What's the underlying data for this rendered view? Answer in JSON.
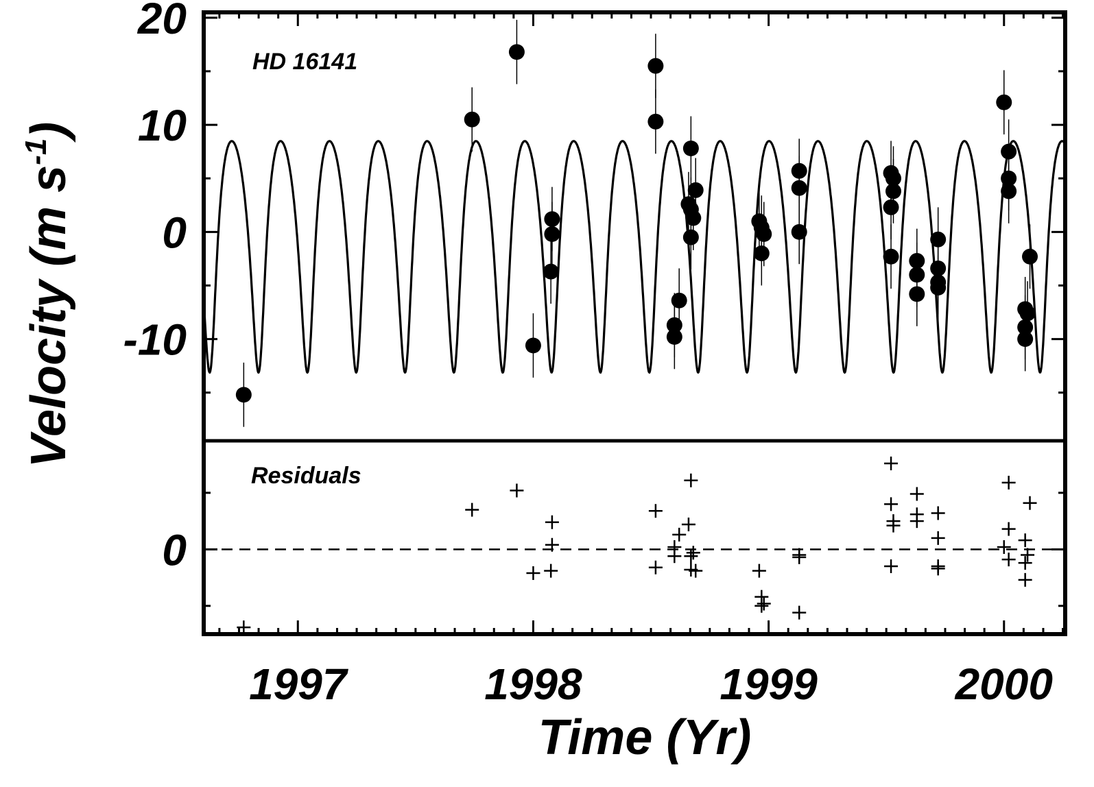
{
  "chart_data": {
    "type": "scatter",
    "xlabel": "Time  (Yr)",
    "ylabel": "Velocity  (m s",
    "ylabel_sup": "-1",
    "ylabel_close": ")",
    "xlim": [
      1996.6,
      2000.26
    ],
    "panels": {
      "velocity": {
        "annotation": "HD 16141",
        "ylim": [
          -19.5,
          20.5
        ],
        "yticks": [
          {
            "value": 20,
            "label": "20"
          },
          {
            "value": 10,
            "label": "10"
          },
          {
            "value": 0,
            "label": "0"
          },
          {
            "value": -10,
            "label": "-10"
          }
        ],
        "model_curve": {
          "period_days": 75.8,
          "K": 10.8,
          "eccentricity": 0.28,
          "gamma": 0.6,
          "omega_deg": 195,
          "t_peri": 1996.63
        },
        "observations": [
          {
            "x": 1996.77,
            "y": -15.2
          },
          {
            "x": 1997.74,
            "y": 10.5
          },
          {
            "x": 1997.93,
            "y": 16.8
          },
          {
            "x": 1998.0,
            "y": -10.6
          },
          {
            "x": 1998.08,
            "y": 1.2
          },
          {
            "x": 1998.08,
            "y": -0.2
          },
          {
            "x": 1998.075,
            "y": -3.7
          },
          {
            "x": 1998.52,
            "y": 15.5
          },
          {
            "x": 1998.52,
            "y": 10.3
          },
          {
            "x": 1998.6,
            "y": -8.7
          },
          {
            "x": 1998.6,
            "y": -9.8
          },
          {
            "x": 1998.62,
            "y": -6.4
          },
          {
            "x": 1998.66,
            "y": 2.6
          },
          {
            "x": 1998.67,
            "y": 7.8
          },
          {
            "x": 1998.67,
            "y": 2.1
          },
          {
            "x": 1998.67,
            "y": -0.5
          },
          {
            "x": 1998.68,
            "y": 1.3
          },
          {
            "x": 1998.69,
            "y": 3.9
          },
          {
            "x": 1998.96,
            "y": 1.0
          },
          {
            "x": 1998.97,
            "y": 0.4
          },
          {
            "x": 1998.97,
            "y": -2.0
          },
          {
            "x": 1998.98,
            "y": -0.2
          },
          {
            "x": 1999.13,
            "y": 5.7
          },
          {
            "x": 1999.13,
            "y": 4.1
          },
          {
            "x": 1999.13,
            "y": 0.0
          },
          {
            "x": 1999.52,
            "y": 5.5
          },
          {
            "x": 1999.52,
            "y": 2.3
          },
          {
            "x": 1999.52,
            "y": -2.3
          },
          {
            "x": 1999.53,
            "y": 5.0
          },
          {
            "x": 1999.53,
            "y": 3.8
          },
          {
            "x": 1999.63,
            "y": -2.7
          },
          {
            "x": 1999.63,
            "y": -4.0
          },
          {
            "x": 1999.63,
            "y": -5.8
          },
          {
            "x": 1999.72,
            "y": -0.7
          },
          {
            "x": 1999.72,
            "y": -3.4
          },
          {
            "x": 1999.72,
            "y": -4.7
          },
          {
            "x": 1999.72,
            "y": -5.2
          },
          {
            "x": 2000.0,
            "y": 12.1
          },
          {
            "x": 2000.02,
            "y": 7.5
          },
          {
            "x": 2000.02,
            "y": 5.0
          },
          {
            "x": 2000.02,
            "y": 3.8
          },
          {
            "x": 2000.09,
            "y": -7.2
          },
          {
            "x": 2000.1,
            "y": -7.6
          },
          {
            "x": 2000.09,
            "y": -8.9
          },
          {
            "x": 2000.09,
            "y": -10.0
          },
          {
            "x": 2000.11,
            "y": -2.3
          }
        ]
      },
      "residuals": {
        "annotation": "Residuals",
        "ylim": [
          -7.5,
          9.6
        ],
        "yticks": [
          {
            "value": 0,
            "label": "0"
          }
        ],
        "zero_line": "dashed",
        "points": [
          {
            "x": 1996.77,
            "y": -6.9
          },
          {
            "x": 1997.74,
            "y": 3.5
          },
          {
            "x": 1997.93,
            "y": 5.2
          },
          {
            "x": 1998.0,
            "y": -2.1
          },
          {
            "x": 1998.08,
            "y": 2.4
          },
          {
            "x": 1998.08,
            "y": 0.4
          },
          {
            "x": 1998.075,
            "y": -1.9
          },
          {
            "x": 1998.52,
            "y": 3.4
          },
          {
            "x": 1998.52,
            "y": -1.6
          },
          {
            "x": 1998.6,
            "y": -0.6
          },
          {
            "x": 1998.6,
            "y": 0.2
          },
          {
            "x": 1998.62,
            "y": 1.3
          },
          {
            "x": 1998.66,
            "y": 2.2
          },
          {
            "x": 1998.67,
            "y": 6.1
          },
          {
            "x": 1998.67,
            "y": -1.8
          },
          {
            "x": 1998.67,
            "y": -0.6
          },
          {
            "x": 1998.68,
            "y": -0.3
          },
          {
            "x": 1998.69,
            "y": -1.9
          },
          {
            "x": 1998.96,
            "y": -1.9
          },
          {
            "x": 1998.97,
            "y": -4.2
          },
          {
            "x": 1998.97,
            "y": -5.0
          },
          {
            "x": 1998.98,
            "y": -4.8
          },
          {
            "x": 1999.13,
            "y": -5.6
          },
          {
            "x": 1999.13,
            "y": -0.5
          },
          {
            "x": 1999.13,
            "y": -0.7
          },
          {
            "x": 1999.52,
            "y": 7.6
          },
          {
            "x": 1999.52,
            "y": -1.5
          },
          {
            "x": 1999.52,
            "y": 4.0
          },
          {
            "x": 1999.53,
            "y": 2.1
          },
          {
            "x": 1999.53,
            "y": 2.5
          },
          {
            "x": 1999.63,
            "y": 4.9
          },
          {
            "x": 1999.63,
            "y": 3.1
          },
          {
            "x": 1999.63,
            "y": 2.5
          },
          {
            "x": 1999.72,
            "y": 3.2
          },
          {
            "x": 1999.72,
            "y": 1.0
          },
          {
            "x": 1999.72,
            "y": -1.5
          },
          {
            "x": 1999.72,
            "y": -1.7
          },
          {
            "x": 2000.0,
            "y": 0.2
          },
          {
            "x": 2000.02,
            "y": 5.9
          },
          {
            "x": 2000.02,
            "y": 1.8
          },
          {
            "x": 2000.02,
            "y": -0.9
          },
          {
            "x": 2000.09,
            "y": 0.8
          },
          {
            "x": 2000.1,
            "y": -0.5
          },
          {
            "x": 2000.09,
            "y": -1.2
          },
          {
            "x": 2000.09,
            "y": -2.7
          },
          {
            "x": 2000.11,
            "y": 4.1
          }
        ]
      }
    },
    "xticks": [
      {
        "value": 1997,
        "label": "1997"
      },
      {
        "value": 1998,
        "label": "1998"
      },
      {
        "value": 1999,
        "label": "1999"
      },
      {
        "value": 2000,
        "label": "2000"
      }
    ],
    "grid": false
  }
}
